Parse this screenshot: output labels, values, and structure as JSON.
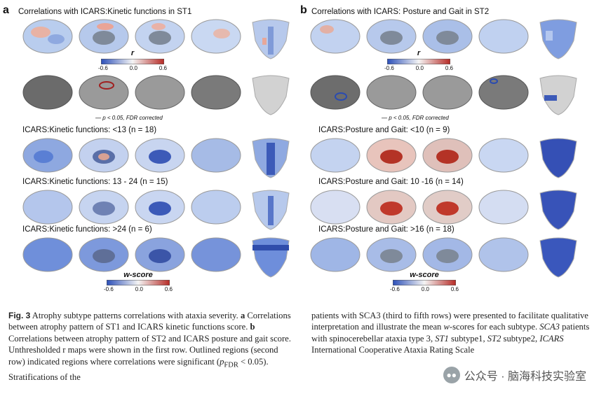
{
  "panel_a": {
    "letter": "a",
    "title": "Correlations with ICARS:Kinetic functions in ST1",
    "r_bar": {
      "label": "r",
      "ticks": [
        "-0.6",
        "0.0",
        "0.6"
      ]
    },
    "sig_note": "p < 0.05, FDR corrected",
    "rows": [
      {
        "label": "ICARS:Kinetic functions: <13 (n = 18)"
      },
      {
        "label": "ICARS:Kinetic functions: 13 - 24 (n = 15)"
      },
      {
        "label": "ICARS:Kinetic functions: >24 (n = 6)"
      }
    ],
    "w_bar": {
      "label": "w-score",
      "ticks": [
        "-0.6",
        "0.0",
        "0.6"
      ]
    }
  },
  "panel_b": {
    "letter": "b",
    "title": "Correlations with ICARS: Posture and Gait in ST2",
    "r_bar": {
      "label": "r",
      "ticks": [
        "-0.6",
        "0.0",
        "0.6"
      ]
    },
    "sig_note": "p < 0.05, FDR corrected",
    "rows": [
      {
        "label": "ICARS:Posture and Gait: <10 (n = 9)"
      },
      {
        "label": "ICARS:Posture and Gait: 10 -16 (n = 14)"
      },
      {
        "label": "ICARS:Posture and Gait: >16 (n = 18)"
      }
    ],
    "w_bar": {
      "label": "w-score",
      "ticks": [
        "-0.6",
        "0.0",
        "0.6"
      ]
    }
  },
  "caption": {
    "fig_label": "Fig. 3",
    "left_1": " Atrophy subtype patterns correlations with ataxia severity. ",
    "a_label": "a",
    "left_2": " Correlations between atrophy pattern of ST1 and ICARS kinetic functions score. ",
    "b_label": "b",
    "left_3": " Correlations between atrophy pattern of ST2 and ICARS posture and gait score. Unthresholded r maps were shown in the first row. Outlined regions (second row) indicated regions where correlations were significant (",
    "p_main": "p",
    "p_sub": "FDR",
    "left_4": " < 0.05). Stratifications of the",
    "right_1": "patients with SCA3 (third to fifth rows) were presented to facilitate qualitative interpretation and illustrate the mean ",
    "w_italic": "w",
    "right_2": "-scores for each subtype. ",
    "sca3": "SCA3",
    "right_3": " patients with spinocerebellar ataxia type 3, ",
    "st1": "ST1",
    "right_4": " subtype1, ",
    "st2": "ST2",
    "right_5": " subtype2, ",
    "icars": "ICARS",
    "right_6": " International Cooperative Ataxia Rating Scale"
  },
  "watermark": {
    "icon": "wechat-icon",
    "text": "公众号 · 脑海科技实验室"
  },
  "colors": {
    "blue": "#3a5fc8",
    "lightblue": "#a9c1ea",
    "red": "#c0392b",
    "gray": "#8a8a8a"
  }
}
